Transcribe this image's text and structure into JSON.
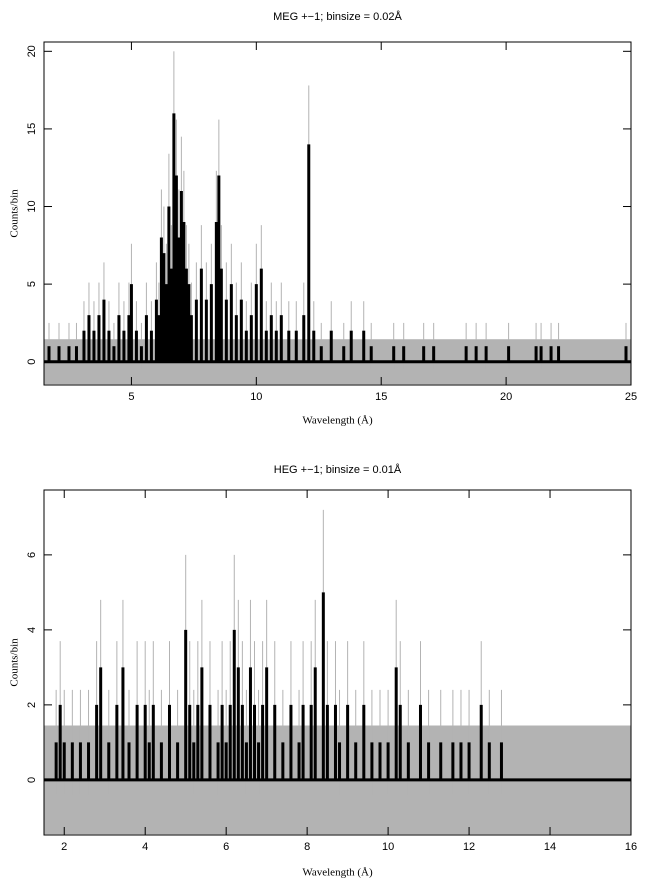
{
  "chart_data": [
    {
      "type": "errorbar",
      "title": "MEG +−1; binsize = 0.02Å",
      "x_label": "Wavelength (Å)",
      "y_label": "Counts/bin",
      "color": "#000000",
      "error_color": "#b3b3b3",
      "xlim": [
        1.5,
        25
      ],
      "ylim": [
        -1.5,
        20.6
      ],
      "xticks": [
        5,
        10,
        15,
        20,
        25
      ],
      "yticks": [
        0,
        5,
        10,
        15,
        20
      ],
      "zero_error": 1.45,
      "x": [
        1.7,
        2.1,
        2.5,
        2.8,
        3.1,
        3.3,
        3.5,
        3.7,
        3.9,
        4.1,
        4.3,
        4.5,
        4.7,
        4.9,
        5.0,
        5.2,
        5.4,
        5.6,
        5.8,
        6.0,
        6.1,
        6.2,
        6.3,
        6.4,
        6.5,
        6.6,
        6.7,
        6.8,
        6.9,
        7.0,
        7.1,
        7.2,
        7.3,
        7.4,
        7.6,
        7.8,
        8.0,
        8.2,
        8.4,
        8.5,
        8.6,
        8.8,
        9.0,
        9.2,
        9.4,
        9.6,
        9.8,
        10.0,
        10.2,
        10.4,
        10.6,
        10.8,
        11.0,
        11.3,
        11.6,
        11.9,
        12.1,
        12.3,
        12.6,
        13.0,
        13.5,
        13.8,
        14.3,
        14.6,
        15.5,
        15.9,
        16.7,
        17.1,
        18.4,
        18.8,
        19.2,
        20.1,
        21.2,
        21.4,
        21.8,
        22.1,
        24.8
      ],
      "values": [
        1,
        1,
        1,
        1,
        2,
        3,
        2,
        3,
        4,
        2,
        1,
        3,
        2,
        3,
        5,
        2,
        1,
        3,
        2,
        4,
        3,
        8,
        7,
        5,
        10,
        6,
        16,
        12,
        8,
        11,
        9,
        6,
        5,
        3,
        4,
        6,
        4,
        5,
        9,
        12,
        6,
        4,
        5,
        3,
        4,
        2,
        3,
        5,
        6,
        2,
        3,
        2,
        3,
        2,
        2,
        3,
        14,
        2,
        1,
        2,
        1,
        2,
        2,
        1,
        1,
        1,
        1,
        1,
        1,
        1,
        1,
        1,
        1,
        1,
        1,
        1,
        1
      ],
      "errors": [
        1.5,
        1.5,
        1.5,
        1.5,
        1.9,
        2.1,
        1.9,
        2.1,
        2.4,
        1.9,
        1.5,
        2.1,
        1.9,
        2.1,
        2.6,
        1.9,
        1.5,
        2.1,
        1.9,
        2.4,
        2.1,
        3.1,
        3.0,
        2.6,
        3.4,
        2.8,
        4.0,
        3.6,
        3.1,
        3.5,
        3.3,
        2.8,
        2.6,
        2.1,
        2.4,
        2.8,
        2.4,
        2.6,
        3.3,
        3.6,
        2.8,
        2.4,
        2.6,
        2.1,
        2.4,
        1.9,
        2.1,
        2.6,
        2.8,
        1.9,
        2.1,
        1.9,
        2.1,
        1.9,
        1.9,
        2.1,
        3.8,
        1.9,
        1.5,
        1.9,
        1.5,
        1.9,
        1.9,
        1.5,
        1.5,
        1.5,
        1.5,
        1.5,
        1.5,
        1.5,
        1.5,
        1.5,
        1.5,
        1.5,
        1.5,
        1.5,
        1.5
      ]
    },
    {
      "type": "errorbar",
      "title": "HEG +−1; binsize = 0.01Å",
      "x_label": "Wavelength (Å)",
      "y_label": "Counts/bin",
      "color": "#000000",
      "error_color": "#b3b3b3",
      "xlim": [
        1.5,
        16
      ],
      "ylim": [
        -1.47,
        7.73
      ],
      "xticks": [
        2,
        4,
        6,
        8,
        10,
        12,
        14,
        16
      ],
      "yticks": [
        0,
        2,
        4,
        6
      ],
      "zero_error": 1.45,
      "x": [
        1.8,
        1.9,
        2.0,
        2.2,
        2.4,
        2.6,
        2.8,
        2.9,
        3.1,
        3.3,
        3.45,
        3.6,
        3.8,
        4.0,
        4.1,
        4.2,
        4.4,
        4.6,
        4.8,
        5.0,
        5.1,
        5.2,
        5.3,
        5.4,
        5.6,
        5.8,
        5.9,
        6.0,
        6.1,
        6.2,
        6.3,
        6.4,
        6.5,
        6.6,
        6.7,
        6.8,
        6.9,
        7.0,
        7.2,
        7.4,
        7.6,
        7.8,
        7.9,
        8.1,
        8.2,
        8.4,
        8.5,
        8.7,
        8.8,
        9.0,
        9.2,
        9.4,
        9.6,
        9.8,
        10.0,
        10.2,
        10.3,
        10.5,
        10.8,
        11.0,
        11.3,
        11.6,
        11.8,
        12.0,
        12.3,
        12.5,
        12.8
      ],
      "values": [
        1,
        2,
        1,
        1,
        1,
        1,
        2,
        3,
        1,
        2,
        3,
        1,
        2,
        2,
        1,
        2,
        1,
        2,
        1,
        4,
        2,
        1,
        2,
        3,
        2,
        1,
        2,
        1,
        2,
        4,
        3,
        2,
        1,
        3,
        2,
        1,
        2,
        3,
        2,
        1,
        2,
        1,
        2,
        2,
        3,
        5,
        2,
        2,
        1,
        2,
        1,
        2,
        1,
        1,
        1,
        3,
        2,
        1,
        2,
        1,
        1,
        1,
        1,
        1,
        2,
        1,
        1
      ],
      "errors": [
        1.4,
        1.7,
        1.4,
        1.4,
        1.4,
        1.4,
        1.7,
        1.8,
        1.4,
        1.7,
        1.8,
        1.4,
        1.7,
        1.7,
        1.4,
        1.7,
        1.4,
        1.7,
        1.4,
        2.0,
        1.7,
        1.4,
        1.7,
        1.8,
        1.7,
        1.4,
        1.7,
        1.4,
        1.7,
        2.0,
        1.8,
        1.7,
        1.4,
        1.8,
        1.7,
        1.4,
        1.7,
        1.8,
        1.7,
        1.4,
        1.7,
        1.4,
        1.7,
        1.7,
        1.8,
        2.2,
        1.7,
        1.7,
        1.4,
        1.7,
        1.4,
        1.7,
        1.4,
        1.4,
        1.4,
        1.8,
        1.7,
        1.4,
        1.7,
        1.4,
        1.4,
        1.4,
        1.4,
        1.4,
        1.7,
        1.4,
        1.4
      ]
    }
  ]
}
